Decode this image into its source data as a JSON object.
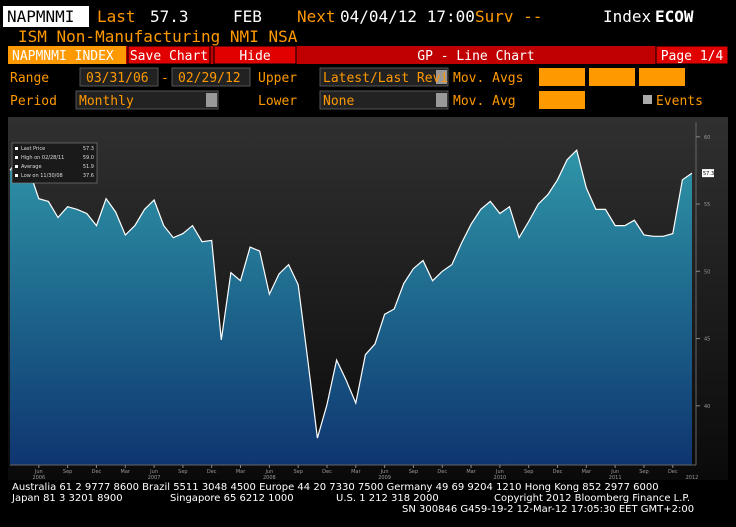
{
  "header": {
    "ticker": "NAPMNMI",
    "last_label": "Last",
    "last_value": "57.3",
    "period": "FEB",
    "next_label": "Next",
    "next_value": "04/04/12 17:00",
    "surv_label": "Surv --",
    "index_label": "Index",
    "function": "ECOW",
    "security_name": "ISM Non-Manufacturing NMI NSA"
  },
  "toolbar": {
    "security": "NAPMNMI INDEX",
    "save": "Save Chart",
    "hide": "Hide",
    "title": "GP - Line Chart",
    "page": "Page 1/4"
  },
  "controls": {
    "range_label": "Range",
    "range_start": "03/31/06",
    "range_sep": "-",
    "range_end": "02/29/12",
    "upper_label": "Upper",
    "upper_value": "Latest/Last Revi",
    "mov_avgs_label": "Mov. Avgs",
    "period_label": "Period",
    "period_value": "Monthly",
    "lower_label": "Lower",
    "lower_value": "None",
    "mov_avg_label": "Mov. Avg",
    "events_label": "Events"
  },
  "chart_data": {
    "type": "area",
    "categories": [
      null,
      null,
      null,
      "Jun",
      null,
      null,
      "Sep",
      null,
      null,
      "Dec",
      null,
      null,
      "Mar",
      null,
      null,
      "Jun",
      null,
      null,
      "Sep",
      null,
      null,
      "Dec",
      null,
      null,
      "Mar",
      null,
      null,
      "Jun",
      null,
      null,
      "Sep",
      null,
      null,
      "Dec",
      null,
      null,
      "Mar",
      null,
      null,
      "Jun",
      null,
      null,
      "Sep",
      null,
      null,
      "Dec",
      null,
      null,
      "Mar",
      null,
      null,
      "Jun",
      null,
      null,
      "Sep",
      null,
      null,
      "Dec",
      null,
      null,
      "Mar",
      null,
      null,
      "Jun",
      null,
      null,
      "Sep",
      null,
      null,
      "Dec",
      null,
      null
    ],
    "year_labels": [
      "2006",
      "2007",
      "2008",
      "2009",
      "2010",
      "2011",
      "2012"
    ],
    "values": [
      57.5,
      58.5,
      57.5,
      55.4,
      55.2,
      54.0,
      54.8,
      54.6,
      54.3,
      53.4,
      55.4,
      54.4,
      52.7,
      53.4,
      54.6,
      55.3,
      53.4,
      52.5,
      52.8,
      53.4,
      52.2,
      52.3,
      44.9,
      49.9,
      49.3,
      51.8,
      51.5,
      48.3,
      49.8,
      50.5,
      49.0,
      43.4,
      37.6,
      40.1,
      43.4,
      41.9,
      40.2,
      43.8,
      44.6,
      46.8,
      47.2,
      49.1,
      50.2,
      50.8,
      49.3,
      50.0,
      50.5,
      52.1,
      53.5,
      54.6,
      55.2,
      54.3,
      54.8,
      52.5,
      53.7,
      55.0,
      55.7,
      56.8,
      58.3,
      59.0,
      56.2,
      54.6,
      54.6,
      53.4,
      53.4,
      53.8,
      52.7,
      52.6,
      52.6,
      52.8,
      56.8,
      57.3
    ],
    "color": "#ffffff",
    "ylim": [
      35.6,
      61.1
    ],
    "yticks": [
      40,
      45,
      50,
      55,
      60
    ],
    "legend": [
      {
        "label": "Last Price",
        "value": "57.3"
      },
      {
        "label": "High on 02/28/11",
        "value": "59.0"
      },
      {
        "label": "Average",
        "value": "51.9"
      },
      {
        "label": "Low on 11/30/08",
        "value": "37.6"
      }
    ]
  },
  "footer": {
    "line1": "Australia 61 2 9777 8600 Brazil 5511 3048 4500 Europe 44 20 7330 7500 Germany 49 69 9204 1210 Hong Kong 852 2977 6000",
    "japan": "Japan 81 3 3201 8900",
    "singapore": "Singapore 65 6212 1000",
    "us": "U.S. 1 212 318 2000",
    "copyright": "Copyright 2012 Bloomberg Finance L.P.",
    "sn": "SN 300846 G459-19-2 12-Mar-12 17:05:30 EET  GMT+2:00"
  }
}
